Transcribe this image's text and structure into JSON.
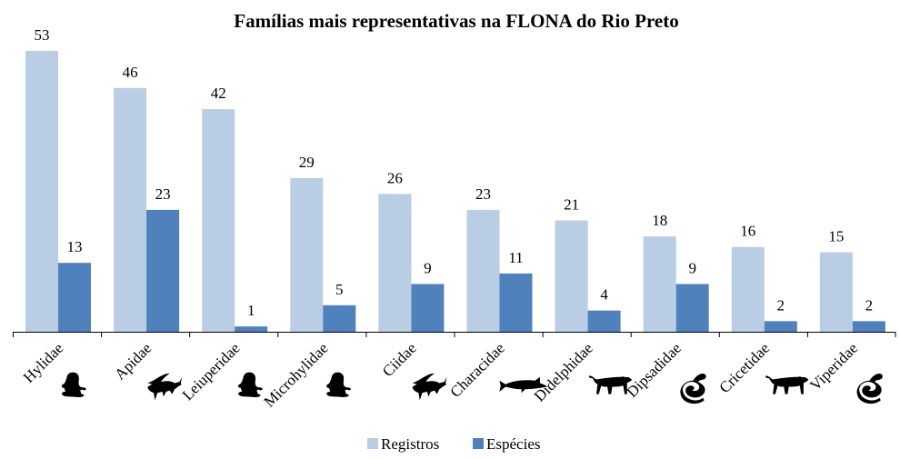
{
  "chart_data": {
    "type": "bar",
    "title": "Famílias mais representativas na FLONA do Rio Preto",
    "xlabel": "",
    "ylabel": "",
    "ylim": [
      0,
      53
    ],
    "grid": false,
    "legend_position": "bottom",
    "categories": [
      "Hylidae",
      "Apidae",
      "Leiuperidae",
      "Microhylidae",
      "Ciidae",
      "Characidae",
      "Didelphidae",
      "Dipsadidae",
      "Cricetidae",
      "Viperidae"
    ],
    "category_icons": [
      "frog-icon",
      "bee-icon",
      "frog-icon",
      "frog-icon",
      "bee-icon",
      "fish-icon",
      "jaguar-icon",
      "snake-icon",
      "jaguar-icon",
      "snake-icon"
    ],
    "series": [
      {
        "name": "Registros",
        "color": "#b9cde5",
        "values": [
          53,
          46,
          42,
          29,
          26,
          23,
          21,
          18,
          16,
          15
        ]
      },
      {
        "name": "Espécies",
        "color": "#4f81bd",
        "values": [
          13,
          23,
          1,
          5,
          9,
          11,
          4,
          9,
          2,
          2
        ]
      }
    ]
  }
}
